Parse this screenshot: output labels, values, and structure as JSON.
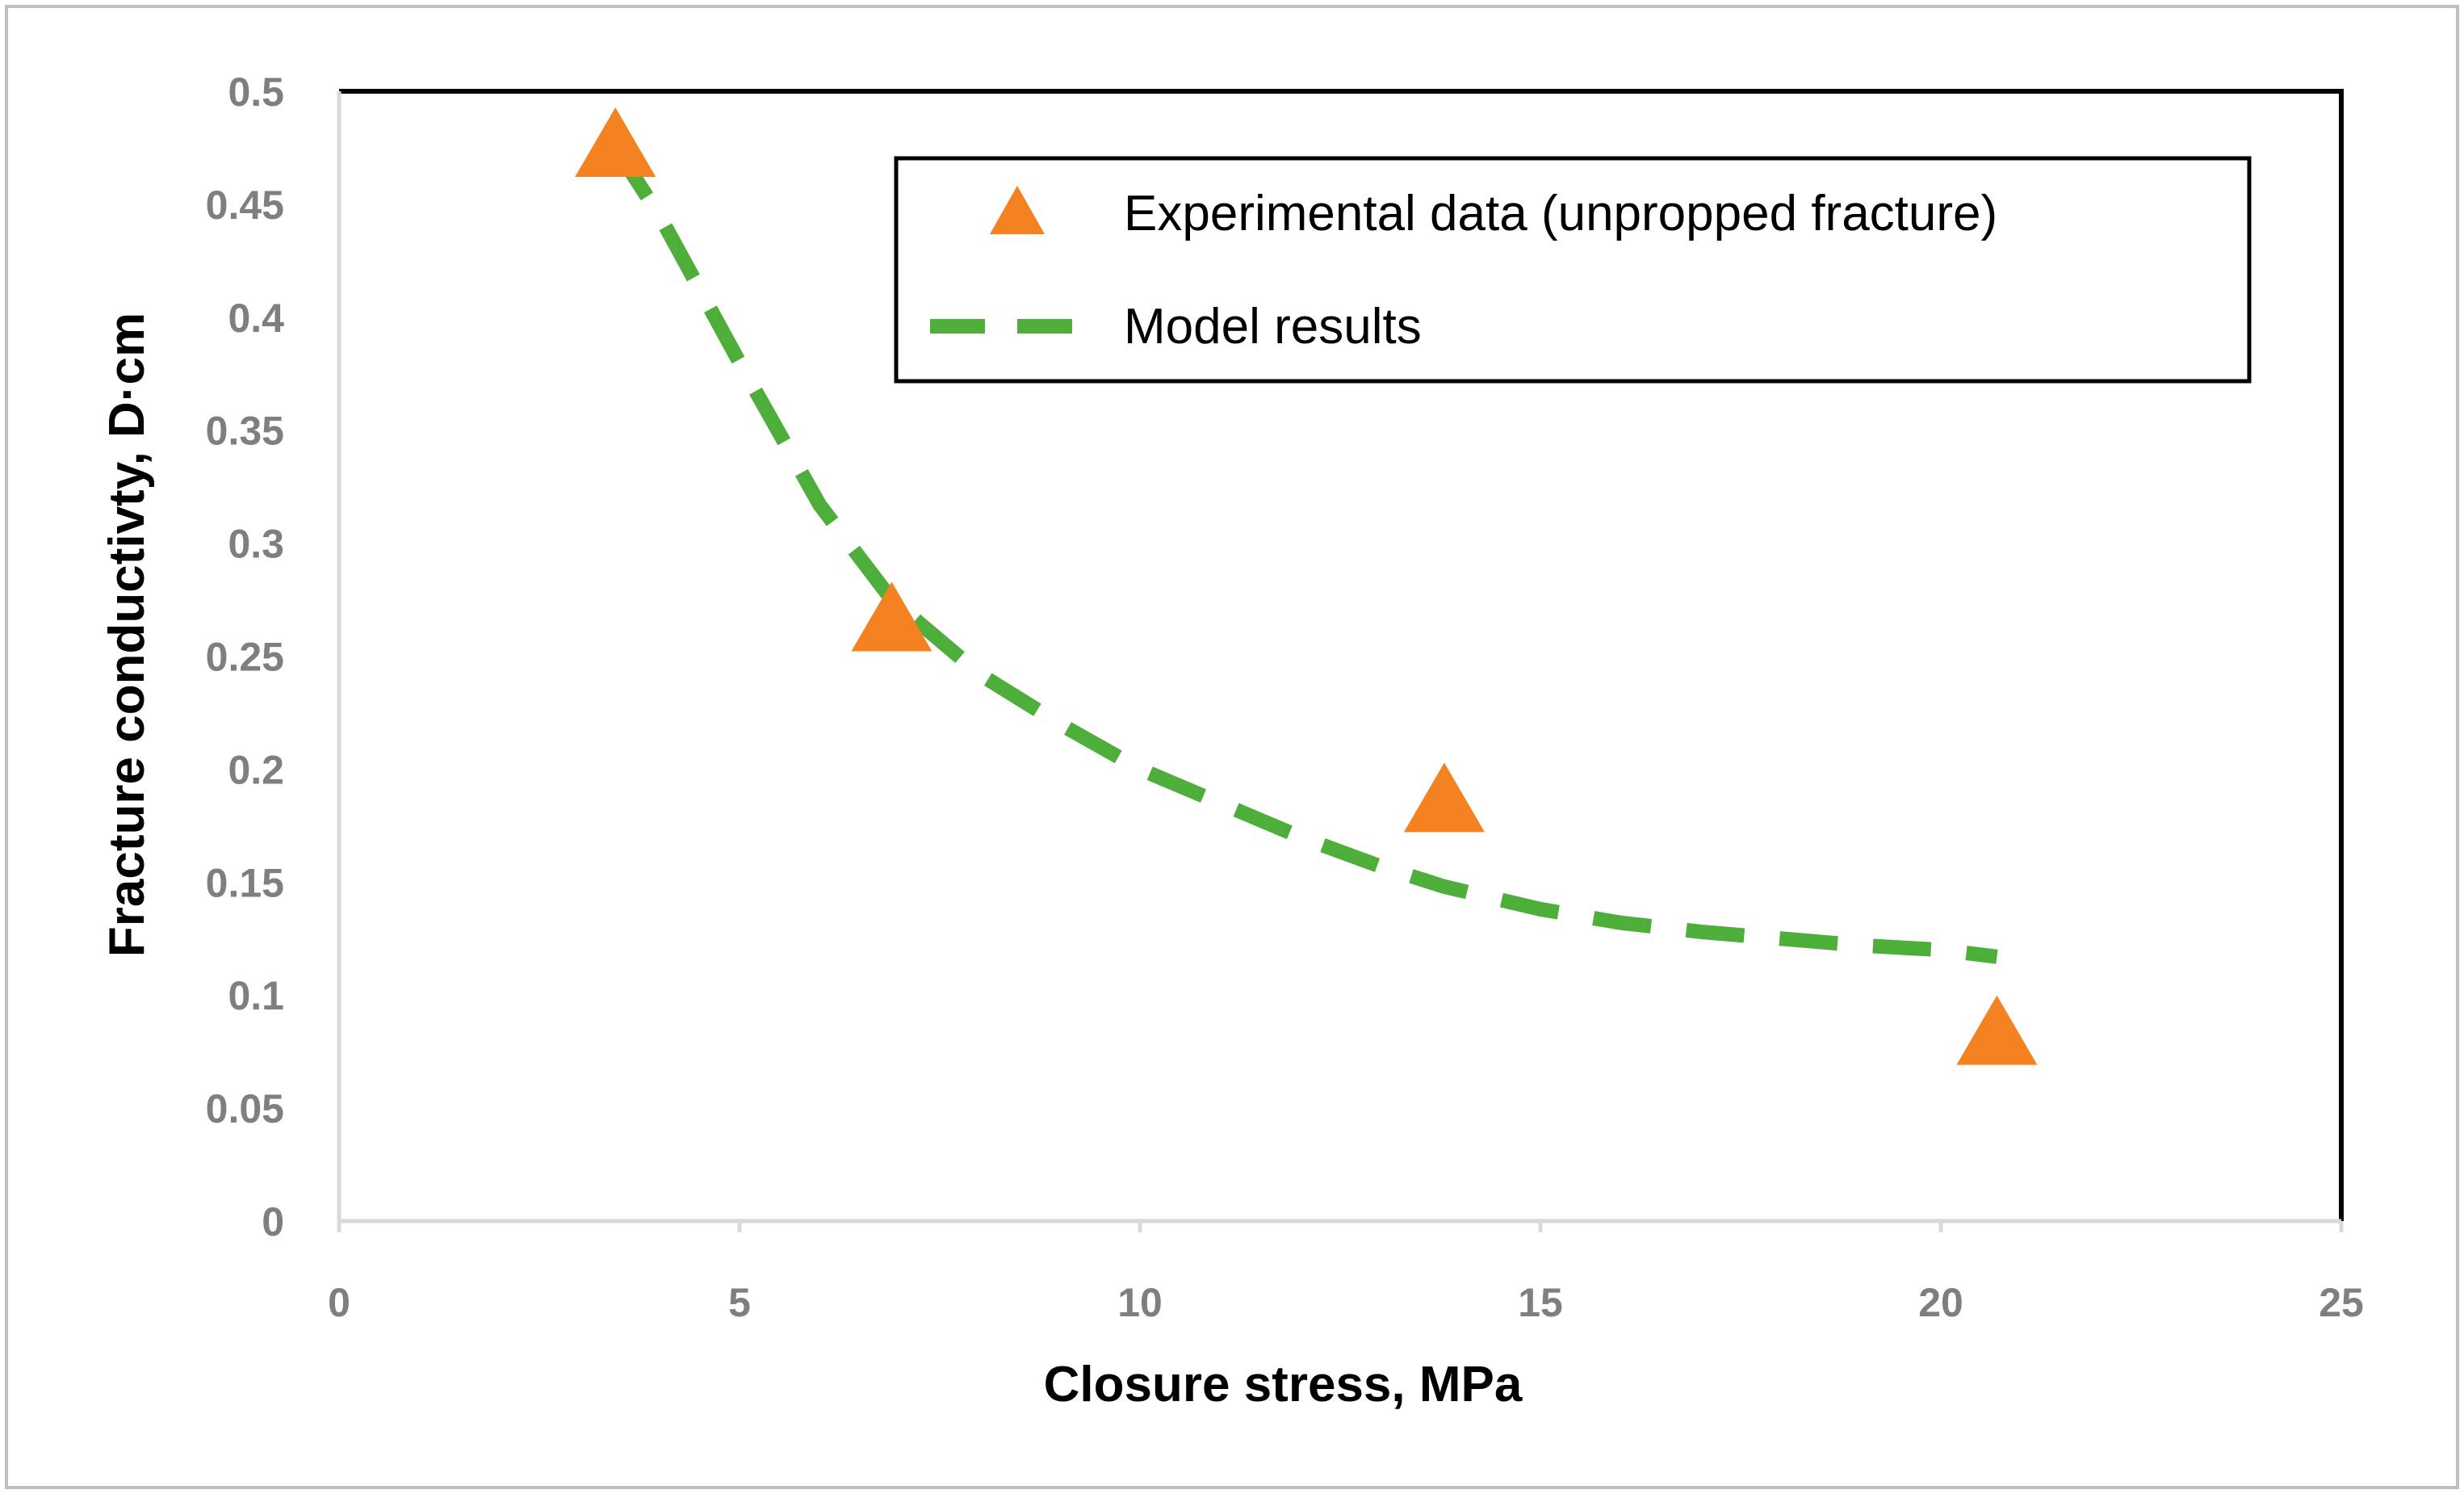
{
  "chart_data": {
    "type": "scatter",
    "title": "",
    "xlabel": "Closure stress, MPa",
    "ylabel": "Fracture conductivty, D·cm",
    "xlim": [
      0,
      25
    ],
    "ylim": [
      0,
      0.5
    ],
    "grid": false,
    "legend_position": "top-right",
    "x_ticks": [
      "0",
      "5",
      "10",
      "15",
      "20",
      "25"
    ],
    "y_ticks": [
      "0",
      "0.05",
      "0.1",
      "0.15",
      "0.2",
      "0.25",
      "0.3",
      "0.35",
      "0.4",
      "0.45",
      "0.5"
    ],
    "series": [
      {
        "name": "Experimental data (unpropped fracture)",
        "type": "scatter",
        "marker": "triangle",
        "color": "#f58220",
        "x": [
          3.45,
          6.9,
          13.8,
          20.7
        ],
        "y": [
          0.475,
          0.265,
          0.185,
          0.082
        ]
      },
      {
        "name": "Model results",
        "type": "line",
        "style": "dashed",
        "color": "#4daf3a",
        "x": [
          3.45,
          4.0,
          5.0,
          6.0,
          6.9,
          8.0,
          9.0,
          10.0,
          11.0,
          12.0,
          13.0,
          13.8,
          15.0,
          16.0,
          17.0,
          18.0,
          19.0,
          20.0,
          20.7
        ],
        "y": [
          0.475,
          0.445,
          0.38,
          0.317,
          0.275,
          0.242,
          0.22,
          0.2,
          0.185,
          0.17,
          0.157,
          0.148,
          0.138,
          0.132,
          0.128,
          0.125,
          0.122,
          0.12,
          0.117
        ]
      }
    ]
  }
}
